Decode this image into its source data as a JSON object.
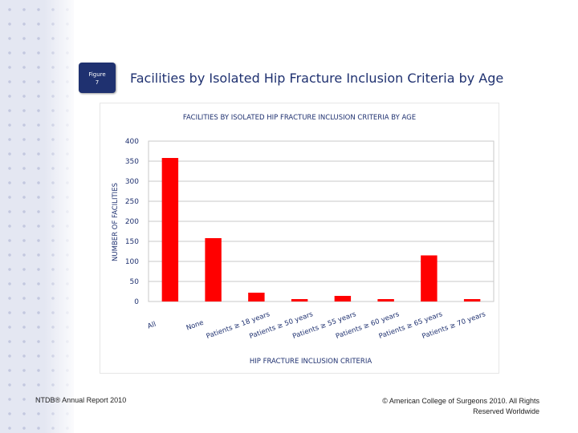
{
  "figure_badge": {
    "line1": "Figure",
    "line2": "7"
  },
  "page_title": "Facilities by Isolated Hip Fracture Inclusion Criteria by Age",
  "footer": {
    "left": "NTDB® Annual Report 2010",
    "right": "© American College of Surgeons 2010. All Rights Reserved Worldwide"
  },
  "colors": {
    "bar": "#ff0000",
    "title_blue": "#1f3170",
    "axis_text": "#1f3170"
  },
  "chart_data": {
    "type": "bar",
    "title": "FACILITIES BY ISOLATED HIP FRACTURE INCLUSION CRITERIA BY AGE",
    "xlabel": "HIP FRACTURE INCLUSION CRITERIA",
    "ylabel": "NUMBER OF FACILITIES",
    "ylim": [
      0,
      400
    ],
    "yticks": [
      0,
      50,
      100,
      150,
      200,
      250,
      300,
      350,
      400
    ],
    "grid": true,
    "categories": [
      "All",
      "None",
      "Patients ≥ 18 years",
      "Patients ≥ 50 years",
      "Patients ≥ 55 years",
      "Patients ≥ 60 years",
      "Patients ≥ 65 years",
      "Patients ≥ 70 years"
    ],
    "values": [
      358,
      158,
      22,
      6,
      14,
      6,
      115,
      6
    ]
  }
}
